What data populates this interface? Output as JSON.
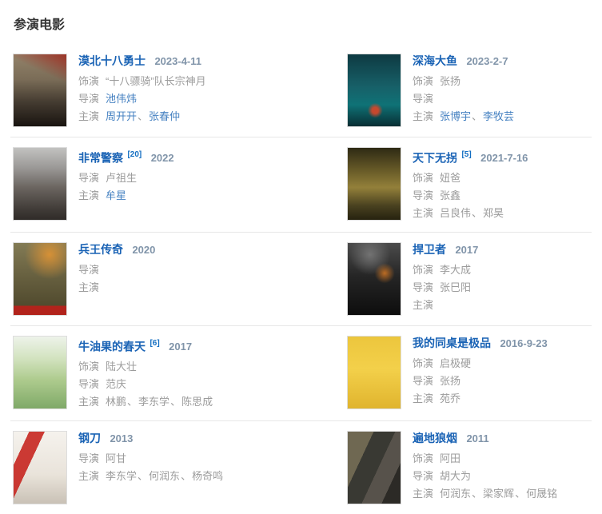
{
  "section": {
    "title": "参演电影"
  },
  "separator": "、",
  "colors": {
    "title_blue": "#1a63b5",
    "link_blue": "#4581c1",
    "ref_blue": "#136ec2",
    "date_gray_blue": "#8094a9",
    "text_gray": "#9c9c9c",
    "divider": "#e7e7e7"
  },
  "movies": [
    {
      "title": "漠北十八勇士",
      "ref": "",
      "date": "2023-4-11",
      "poster_style": "background:linear-gradient(205deg,rgba(158,38,28,0.85) 0%,rgba(158,38,28,0.55) 12%,rgba(158,38,28,0) 30%),linear-gradient(180deg,#93836a 0%,#7a6c57 35%,#463d32 65%,#191410 100%);",
      "credits": [
        {
          "label": "饰演",
          "names": [
            {
              "text": "“十八骠骑”队长宗神月",
              "link": false
            }
          ]
        },
        {
          "label": "导演",
          "names": [
            {
              "text": "池伟炜",
              "link": true
            }
          ]
        },
        {
          "label": "主演",
          "names": [
            {
              "text": "周开开",
              "link": true
            },
            {
              "text": "张春仲",
              "link": true
            }
          ]
        }
      ]
    },
    {
      "title": "深海大鱼",
      "ref": "",
      "date": "2023-2-7",
      "poster_style": "background:radial-gradient(circle at 52% 78%,rgba(216,70,40,0.9) 0%,rgba(216,70,40,0.9) 5%,rgba(216,70,40,0) 12%),linear-gradient(180deg,#0e3a42 0%,#176068 45%,#0f7276 70%,#082e33 100%);",
      "credits": [
        {
          "label": "饰演",
          "names": [
            {
              "text": "张扬",
              "link": false
            }
          ]
        },
        {
          "label": "导演",
          "names": []
        },
        {
          "label": "主演",
          "names": [
            {
              "text": "张博宇",
              "link": true
            },
            {
              "text": "李牧芸",
              "link": true
            }
          ]
        }
      ]
    },
    {
      "title": "非常警察",
      "ref": "[20]",
      "date": "2022",
      "poster_style": "background:linear-gradient(180deg,#c2c2c0 0%,#9a9896 28%,#6b6560 55%,#413c38 85%,#2f2b28 100%);",
      "credits": [
        {
          "label": "导演",
          "names": [
            {
              "text": "卢祖生",
              "link": false
            }
          ]
        },
        {
          "label": "主演",
          "names": [
            {
              "text": "牟星",
              "link": true
            }
          ]
        }
      ]
    },
    {
      "title": "天下无拐",
      "ref": "[5]",
      "date": "2021-7-16",
      "poster_style": "background:linear-gradient(180deg,#2e2a14 0%,#6e602a 35%,#93803a 55%,#4a4220 80%,#26220f 100%);",
      "credits": [
        {
          "label": "饰演",
          "names": [
            {
              "text": "妞爸",
              "link": false
            }
          ]
        },
        {
          "label": "导演",
          "names": [
            {
              "text": "张鑫",
              "link": false
            }
          ]
        },
        {
          "label": "主演",
          "names": [
            {
              "text": "吕良伟",
              "link": false
            },
            {
              "text": "郑昊",
              "link": false
            }
          ]
        }
      ]
    },
    {
      "title": "兵王传奇",
      "ref": "",
      "date": "2020",
      "poster_style": "background:linear-gradient(0deg,rgba(186,32,26,0.92) 0%,rgba(186,32,26,0.92) 13%,rgba(186,32,26,0) 13%),radial-gradient(circle at 68% 16%,rgba(230,150,50,0.85) 0%,rgba(230,150,50,0) 35%),linear-gradient(180deg,#837b55 0%,#655e3e 50%,#4a4429 100%);",
      "credits": [
        {
          "label": "导演",
          "names": []
        },
        {
          "label": "主演",
          "names": []
        }
      ]
    },
    {
      "title": "捍卫者",
      "ref": "",
      "date": "2017",
      "poster_style": "background:radial-gradient(circle at 70% 42%,rgba(214,120,34,0.85) 0%,rgba(214,120,34,0) 18%),radial-gradient(circle at 42% 16%,rgba(120,120,120,0.9) 0%,rgba(120,120,120,0) 30%),linear-gradient(180deg,#4c4c4c 0%,#262626 45%,#0d0d0d 100%);",
      "credits": [
        {
          "label": "饰演",
          "names": [
            {
              "text": "李大成",
              "link": false
            }
          ]
        },
        {
          "label": "导演",
          "names": [
            {
              "text": "张巳阳",
              "link": false
            }
          ]
        },
        {
          "label": "主演",
          "names": []
        }
      ]
    },
    {
      "title": "牛油果的春天",
      "ref": "[6]",
      "date": "2017",
      "poster_style": "background:linear-gradient(180deg,#eef3ea 0%,#d3e3c0 30%,#aecb8e 60%,#7fa968 100%);",
      "credits": [
        {
          "label": "饰演",
          "names": [
            {
              "text": "陆大壮",
              "link": false
            }
          ]
        },
        {
          "label": "导演",
          "names": [
            {
              "text": "范庆",
              "link": false
            }
          ]
        },
        {
          "label": "主演",
          "names": [
            {
              "text": "林鹏",
              "link": false
            },
            {
              "text": "李东学",
              "link": false
            },
            {
              "text": "陈思成",
              "link": false
            }
          ]
        }
      ]
    },
    {
      "title": "我的同桌是极品",
      "ref": "",
      "date": "2016-9-23",
      "poster_style": "background:linear-gradient(180deg,#ecc63d 0%,#f3d04a 45%,#e0b42e 100%);",
      "credits": [
        {
          "label": "饰演",
          "names": [
            {
              "text": "启极硬",
              "link": false
            }
          ]
        },
        {
          "label": "导演",
          "names": [
            {
              "text": "张扬",
              "link": false
            }
          ]
        },
        {
          "label": "主演",
          "names": [
            {
              "text": "苑乔",
              "link": false
            }
          ]
        }
      ]
    },
    {
      "title": "钢刀",
      "ref": "",
      "date": "2013",
      "poster_style": "background:linear-gradient(115deg,rgba(0,0,0,0) 18%,rgba(199,38,32,0.9) 18%,rgba(199,38,32,0.9) 36%,rgba(0,0,0,0) 36%),linear-gradient(180deg,#f5f2ed 0%,#e9e3da 60%,#c9c1b6 100%);",
      "credits": [
        {
          "label": "导演",
          "names": [
            {
              "text": "阿甘",
              "link": false
            }
          ]
        },
        {
          "label": "主演",
          "names": [
            {
              "text": "李东学",
              "link": false
            },
            {
              "text": "何润东",
              "link": false
            },
            {
              "text": "杨奇鸣",
              "link": false
            }
          ]
        }
      ]
    },
    {
      "title": "遍地狼烟",
      "ref": "",
      "date": "2011",
      "poster_style": "background:linear-gradient(115deg,#6f6852 0%,#6f6852 30%,#393933 30%,#393933 55%,#57524b 55%,#57524b 78%,#2c2a26 78%),linear-gradient(180deg,#777777 0%,#333333 100%);",
      "credits": [
        {
          "label": "饰演",
          "names": [
            {
              "text": "阿田",
              "link": false
            }
          ]
        },
        {
          "label": "导演",
          "names": [
            {
              "text": "胡大为",
              "link": false
            }
          ]
        },
        {
          "label": "主演",
          "names": [
            {
              "text": "何润东",
              "link": false
            },
            {
              "text": "梁家辉",
              "link": false
            },
            {
              "text": "何晟铭",
              "link": false
            }
          ]
        }
      ]
    }
  ]
}
